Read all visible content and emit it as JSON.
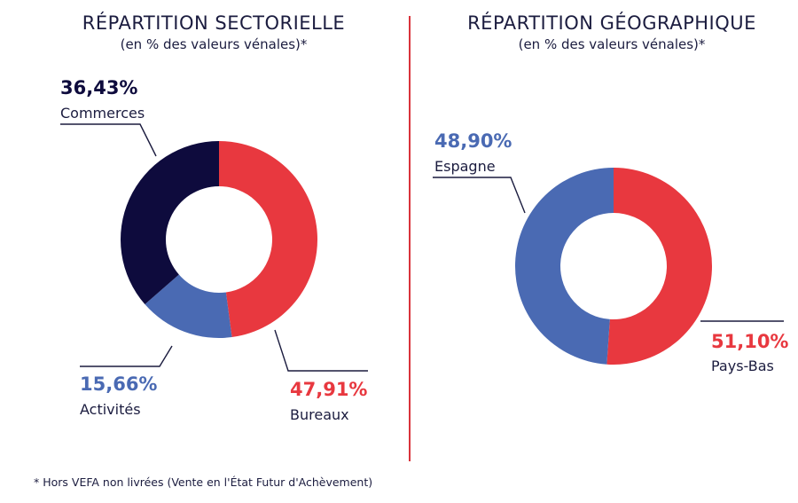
{
  "colors": {
    "navy": "#0e0b3d",
    "red": "#e8383f",
    "blue": "#4a6ab3",
    "divider": "#d9333b",
    "text": "#1b1c3f"
  },
  "footnote": "* Hors VEFA non livrées (Vente en l'État Futur d'Achèvement)",
  "chart_data": [
    {
      "type": "pie",
      "variant": "donut",
      "title": "RÉPARTITION SECTORIELLE",
      "subtitle": "(en % des valeurs vénales)*",
      "slices": [
        {
          "label": "Bureaux",
          "value": 47.91,
          "display": "47,91%",
          "color": "#e8383f"
        },
        {
          "label": "Activités",
          "value": 15.66,
          "display": "15,66%",
          "color": "#4a6ab3"
        },
        {
          "label": "Commerces",
          "value": 36.43,
          "display": "36,43%",
          "color": "#0e0b3d"
        }
      ]
    },
    {
      "type": "pie",
      "variant": "donut",
      "title": "RÉPARTITION GÉOGRAPHIQUE",
      "subtitle": "(en % des valeurs vénales)*",
      "slices": [
        {
          "label": "Pays-Bas",
          "value": 51.1,
          "display": "51,10%",
          "color": "#e8383f"
        },
        {
          "label": "Espagne",
          "value": 48.9,
          "display": "48,90%",
          "color": "#4a6ab3"
        }
      ]
    }
  ]
}
